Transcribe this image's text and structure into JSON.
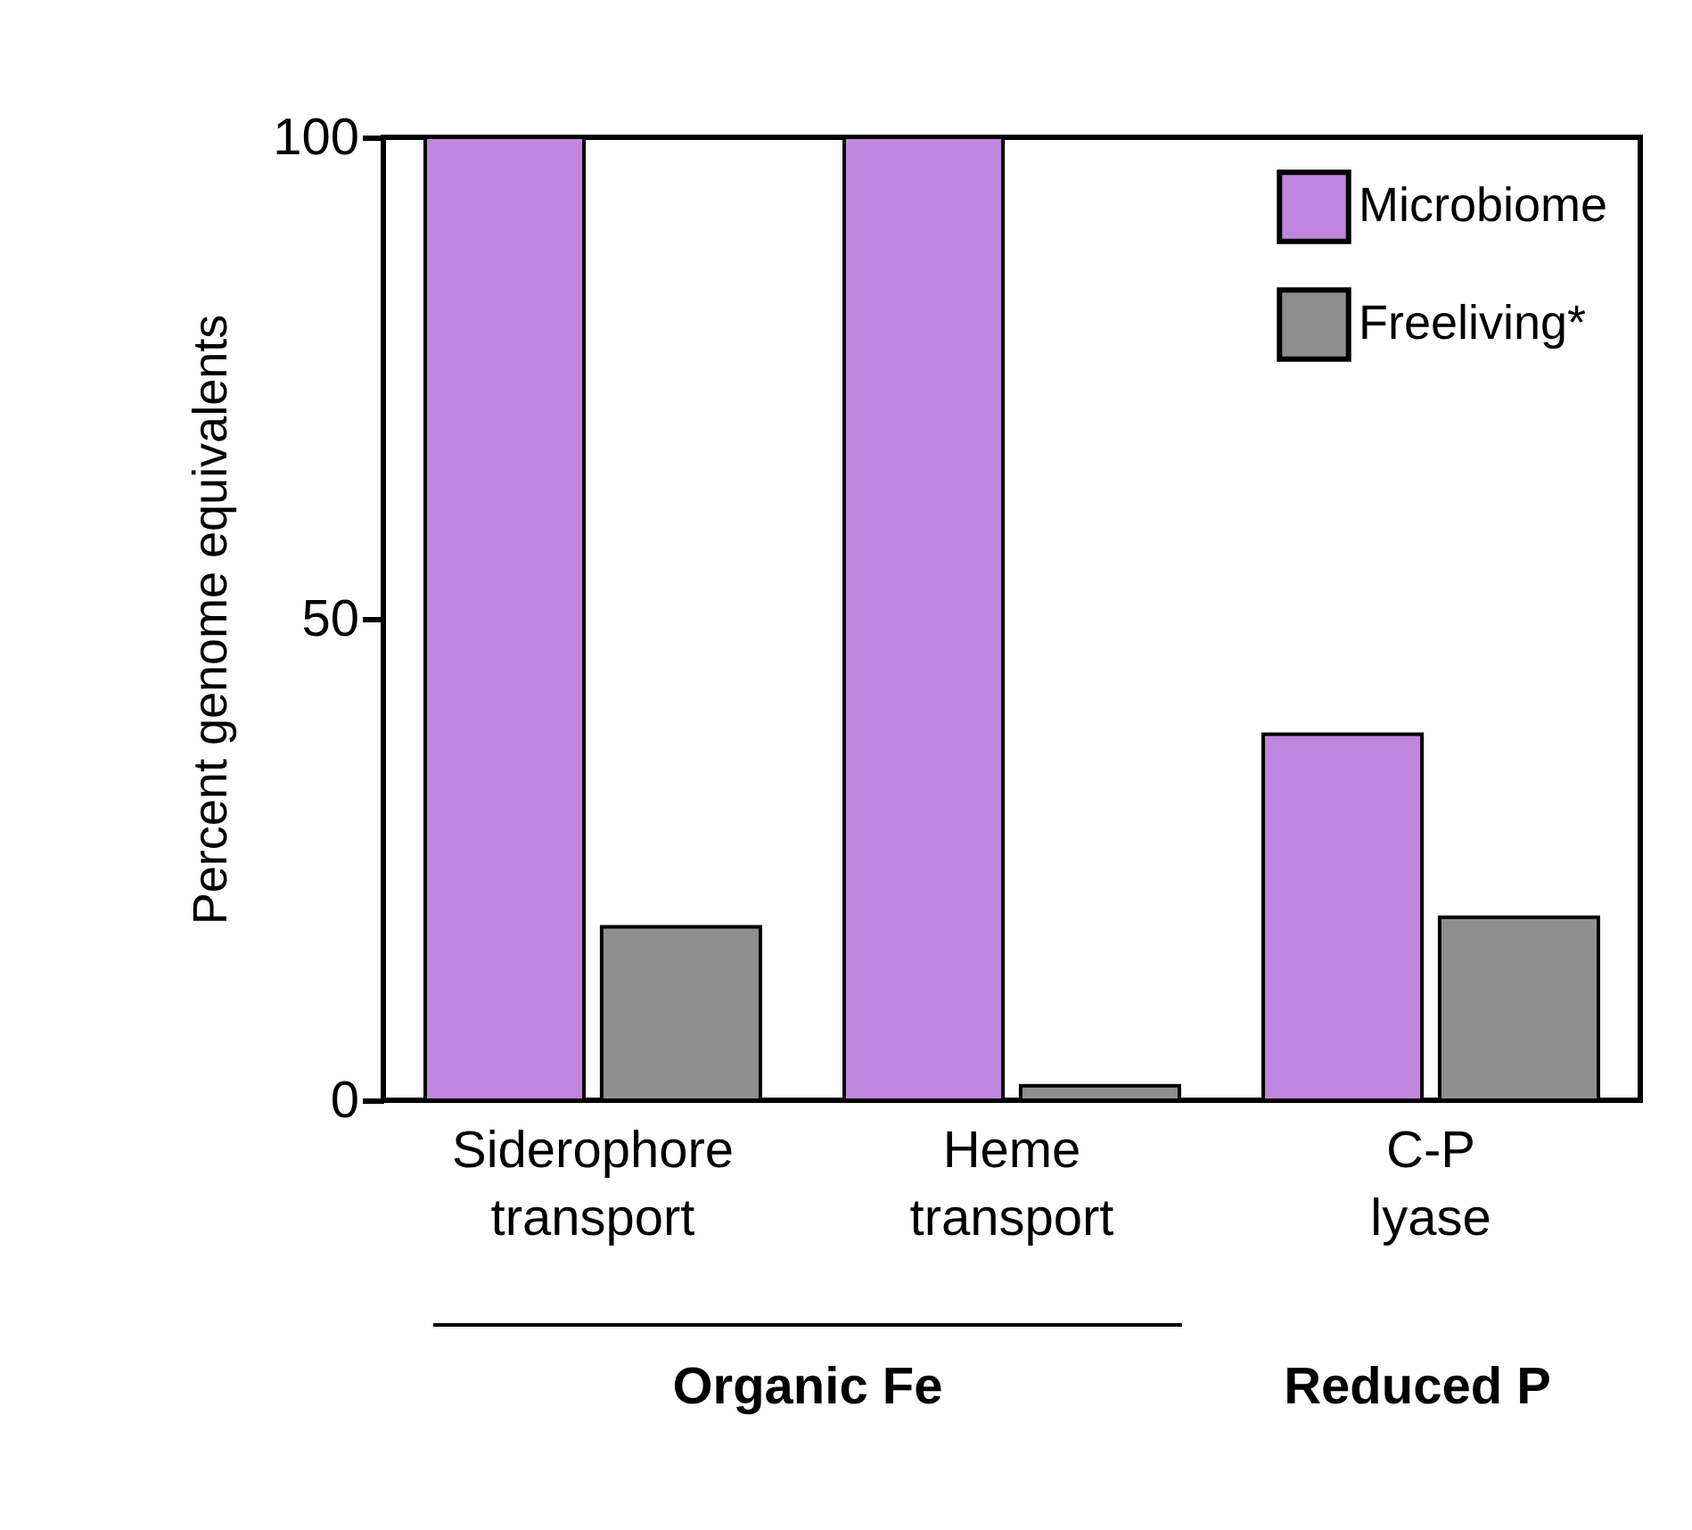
{
  "chart_data": {
    "type": "bar",
    "ylabel": "Percent genome equivalents",
    "categories": [
      "Siderophore transport",
      "Heme transport",
      "C-P lyase"
    ],
    "series": [
      {
        "name": "Microbiome",
        "color": "#bf86de",
        "values": [
          100,
          100,
          38
        ]
      },
      {
        "name": "Freeliving*",
        "color": "#8f8f8f",
        "values": [
          18,
          1.5,
          19
        ]
      }
    ],
    "ylim": [
      0,
      100
    ],
    "yticks": [
      0,
      50,
      100
    ],
    "grid": false,
    "legend": "top right",
    "annotations": [
      "Organic Fe",
      "Reduced P"
    ]
  }
}
